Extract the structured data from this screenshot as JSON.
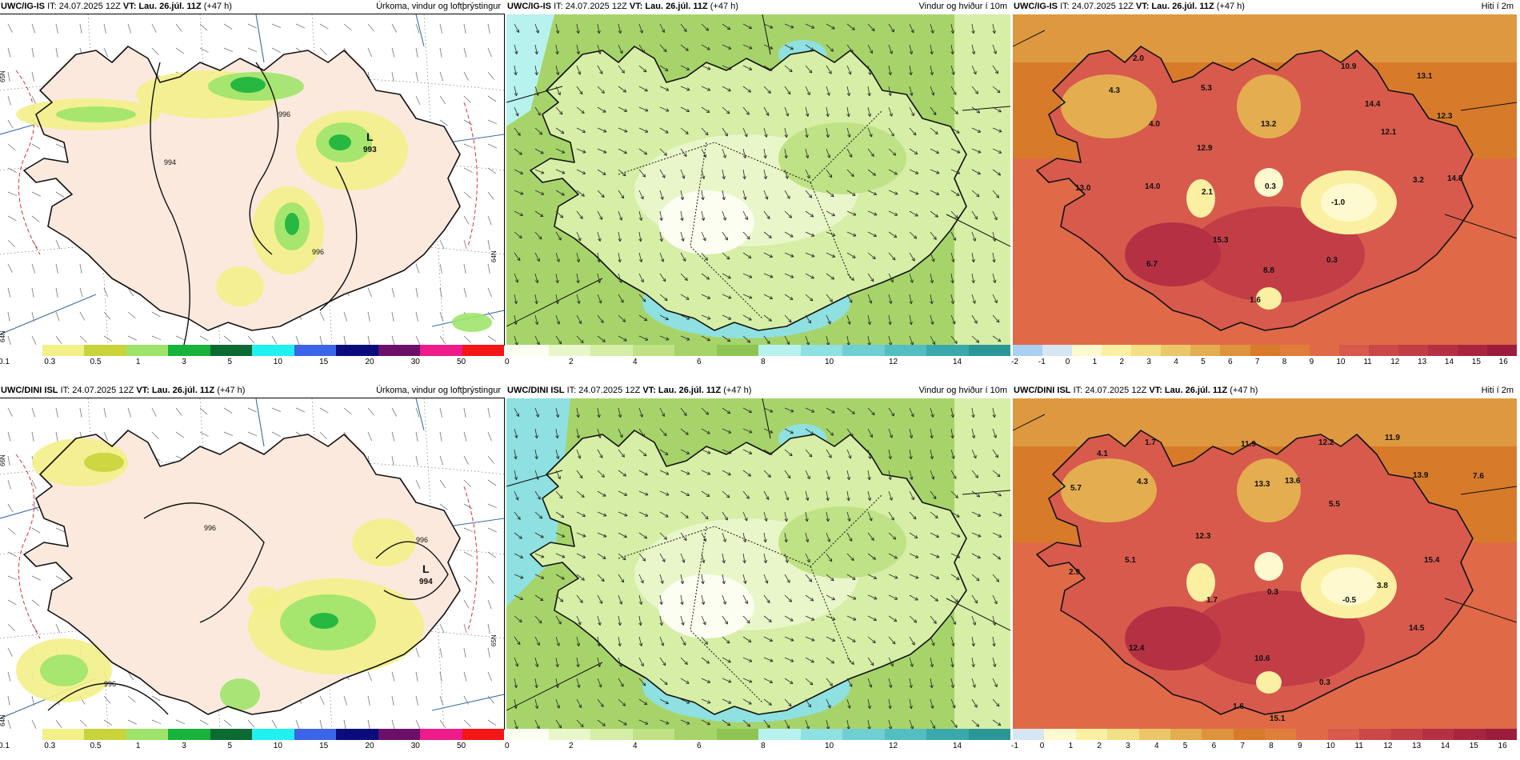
{
  "panels": [
    {
      "id": "ig-precip",
      "model": "UWC/IG-IS",
      "it_label": "IT: 24.07.2025 12Z",
      "vt_prefix": "VT:",
      "vt_value": "Lau. 26.júl. 11Z",
      "lead": "(+47 h)",
      "field": "Úrkoma, vindur og loftþrýstingur",
      "colorbar": [
        "#ffffff",
        "#f3f08a",
        "#c8d43a",
        "#9fe46a",
        "#18b33c",
        "#0b6b33",
        "#1ff0f0",
        "#3c64e8",
        "#0b0b7c",
        "#6b0f6b",
        "#ee1c8b",
        "#f41515"
      ],
      "ticks": [
        "0.1",
        "0.3",
        "0.5",
        "1",
        "3",
        "5",
        "10",
        "15",
        "20",
        "30",
        "50"
      ],
      "low_label": "L",
      "low_value": "993",
      "isobars": [
        "996",
        "994",
        "996"
      ],
      "side_labels": [
        "65N",
        "64N",
        "64N"
      ]
    },
    {
      "id": "ig-wind",
      "model": "UWC/IG-IS",
      "it_label": "IT: 24.07.2025 12Z",
      "vt_prefix": "VT:",
      "vt_value": "Lau. 26.júl. 11Z",
      "lead": "(+47 h)",
      "field": "Vindur og hviður í 10m",
      "colorbar": [
        "#fbfef0",
        "#e9f6c9",
        "#d6eea6",
        "#bfe286",
        "#a6d46a",
        "#8fc452",
        "#b7f2ef",
        "#8fe0e0",
        "#6fcfd2",
        "#54bdc1",
        "#3aa9ad",
        "#2a9698"
      ],
      "ticks": [
        "0",
        "2",
        "4",
        "6",
        "8",
        "10",
        "12",
        "14"
      ]
    },
    {
      "id": "ig-temp",
      "model": "UWC/IG-IS",
      "it_label": "IT: 24.07.2025 12Z",
      "vt_prefix": "VT:",
      "vt_value": "Lau. 26.júl. 11Z",
      "lead": "(+47 h)",
      "field": "Hiti í 2m",
      "colorbar": [
        "#a9cff2",
        "#d6e6f2",
        "#fff9cf",
        "#fbf0a2",
        "#f3df86",
        "#ebc76a",
        "#e3ad50",
        "#dc933b",
        "#d77b2a",
        "#e07d3a",
        "#e06a47",
        "#d85a4c",
        "#cc4747",
        "#c23d46",
        "#b63043",
        "#a9253f",
        "#9b1c3b"
      ],
      "ticks": [
        "-2",
        "-1",
        "0",
        "1",
        "2",
        "3",
        "4",
        "5",
        "6",
        "7",
        "8",
        "9",
        "10",
        "11",
        "12",
        "13",
        "14",
        "15",
        "16"
      ],
      "values": [
        "2.0",
        "4.3",
        "5.3",
        "10.9",
        "13.1",
        "14.4",
        "13.2",
        "4.0",
        "12.9",
        "12.3",
        "12.1",
        "2.1",
        "0.3",
        "13.0",
        "14.0",
        "-1.0",
        "3.2",
        "14.8",
        "15.3",
        "6.7",
        "0.3",
        "8.8",
        "1.6"
      ]
    },
    {
      "id": "dini-precip",
      "model": "UWC/DINI ISL",
      "it_label": "IT: 24.07.2025 12Z",
      "vt_prefix": "VT:",
      "vt_value": "Lau. 26.júl. 11Z",
      "lead": "(+47 h)",
      "field": "Úrkoma, vindur og loftþrýstingur",
      "colorbar": [
        "#ffffff",
        "#f3f08a",
        "#c8d43a",
        "#9fe46a",
        "#18b33c",
        "#0b6b33",
        "#1ff0f0",
        "#3c64e8",
        "#0b0b7c",
        "#6b0f6b",
        "#ee1c8b",
        "#f41515"
      ],
      "ticks": [
        "0.1",
        "0.3",
        "0.5",
        "1",
        "3",
        "5",
        "10",
        "15",
        "20",
        "30",
        "50"
      ],
      "low_label": "L",
      "low_value": "994",
      "isobars": [
        "996",
        "996",
        "996"
      ],
      "side_labels": [
        "66N",
        "65N",
        "64N"
      ]
    },
    {
      "id": "dini-wind",
      "model": "UWC/DINI ISL",
      "it_label": "IT: 24.07.2025 12Z",
      "vt_prefix": "VT:",
      "vt_value": "Lau. 26.júl. 11Z",
      "lead": "(+47 h)",
      "field": "Vindur og hviður í 10m",
      "colorbar": [
        "#fbfef0",
        "#e9f6c9",
        "#d6eea6",
        "#bfe286",
        "#a6d46a",
        "#8fc452",
        "#b7f2ef",
        "#8fe0e0",
        "#6fcfd2",
        "#54bdc1",
        "#3aa9ad",
        "#2a9698"
      ],
      "ticks": [
        "0",
        "2",
        "4",
        "6",
        "8",
        "10",
        "12",
        "14"
      ]
    },
    {
      "id": "dini-temp",
      "model": "UWC/DINI ISL",
      "it_label": "IT: 24.07.2025 12Z",
      "vt_prefix": "VT:",
      "vt_value": "Lau. 26.júl. 11Z",
      "lead": "(+47 h)",
      "field": "Hiti í 2m",
      "colorbar": [
        "#d6e6f2",
        "#fff9cf",
        "#fbf0a2",
        "#f3df86",
        "#ebc76a",
        "#e3ad50",
        "#dc933b",
        "#d77b2a",
        "#e07d3a",
        "#e06a47",
        "#d85a4c",
        "#cc4747",
        "#c23d46",
        "#b63043",
        "#a9253f",
        "#9b1c3b"
      ],
      "ticks": [
        "-1",
        "0",
        "1",
        "2",
        "3",
        "4",
        "5",
        "6",
        "7",
        "8",
        "9",
        "10",
        "11",
        "12",
        "13",
        "14",
        "15",
        "16"
      ],
      "values": [
        "1.7",
        "4.1",
        "11.9",
        "12.2",
        "11.9",
        "5.7",
        "4.3",
        "13.3",
        "13.6",
        "13.9",
        "7.6",
        "5.5",
        "12.3",
        "5.1",
        "2.9",
        "1.7",
        "0.3",
        "3.8",
        "15.4",
        "-0.5",
        "12.4",
        "14.5",
        "10.6",
        "0.3",
        "1.6",
        "15.1"
      ]
    }
  ]
}
